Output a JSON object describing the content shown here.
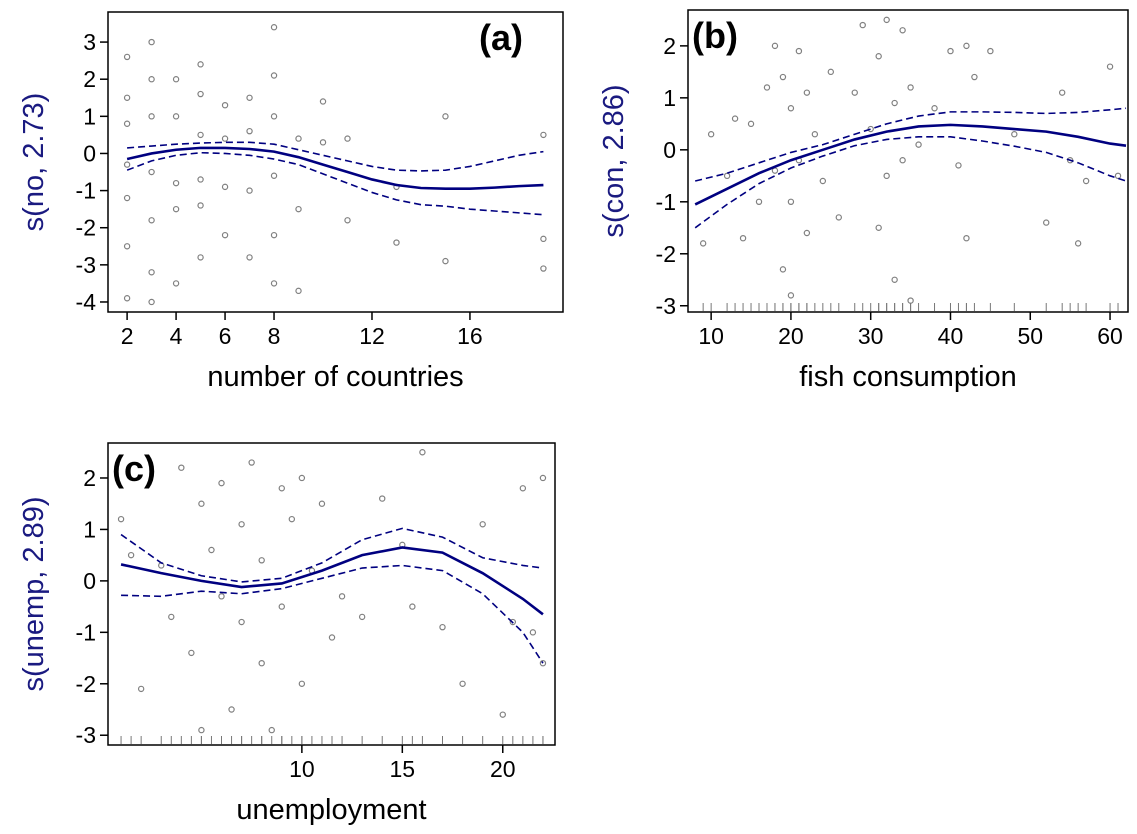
{
  "chart_data": [
    {
      "type": "scatter",
      "panel_label": "(a)",
      "xlabel": "number of countries",
      "ylabel": "s(no, 2.73)",
      "xlim": [
        1.22,
        19.8
      ],
      "ylim": [
        -4.27,
        3.81
      ],
      "xticks": [
        2,
        4,
        6,
        8,
        12,
        16
      ],
      "yticks": [
        3,
        2,
        1,
        0,
        -1,
        -2,
        -3,
        -4
      ],
      "rug": false,
      "points": {
        "color": "#808080",
        "x": [
          2,
          2,
          2,
          2,
          2,
          2,
          2,
          3,
          3,
          3,
          3,
          3,
          3,
          3,
          4,
          4,
          4,
          4,
          4,
          5,
          5,
          5,
          5,
          5,
          5,
          6,
          6,
          6,
          6,
          7,
          7,
          7,
          7,
          8,
          8,
          8,
          8,
          8,
          8,
          9,
          9,
          9,
          10,
          10,
          11,
          11,
          13,
          13,
          15,
          15,
          19,
          19,
          19
        ],
        "y": [
          2.6,
          1.5,
          0.8,
          -0.3,
          -1.2,
          -2.5,
          -3.9,
          3.0,
          2.0,
          1.0,
          -0.5,
          -1.8,
          -3.2,
          -4.0,
          2.0,
          1.0,
          -0.8,
          -1.5,
          -3.5,
          2.4,
          1.6,
          0.5,
          -0.7,
          -1.4,
          -2.8,
          1.3,
          0.4,
          -0.9,
          -2.2,
          1.5,
          0.6,
          -1.0,
          -2.8,
          3.4,
          2.1,
          1.0,
          -0.6,
          -2.2,
          -3.5,
          0.4,
          -1.5,
          -3.7,
          1.4,
          0.3,
          0.4,
          -1.8,
          -0.9,
          -2.4,
          1.0,
          -2.9,
          0.5,
          -2.3,
          -3.1
        ]
      },
      "fit": {
        "color": "#000080",
        "x": [
          2,
          3,
          4,
          5,
          6,
          7,
          8,
          9,
          10,
          11,
          12,
          13,
          14,
          15,
          16,
          17,
          18,
          19
        ],
        "y": [
          -0.15,
          0.0,
          0.1,
          0.15,
          0.15,
          0.12,
          0.05,
          -0.1,
          -0.3,
          -0.5,
          -0.7,
          -0.85,
          -0.93,
          -0.95,
          -0.95,
          -0.92,
          -0.88,
          -0.85
        ],
        "upper": [
          0.15,
          0.2,
          0.25,
          0.28,
          0.3,
          0.3,
          0.25,
          0.1,
          -0.05,
          -0.2,
          -0.35,
          -0.45,
          -0.47,
          -0.45,
          -0.35,
          -0.2,
          -0.05,
          0.05
        ],
        "lower": [
          -0.45,
          -0.2,
          -0.05,
          0.02,
          0.0,
          -0.05,
          -0.15,
          -0.3,
          -0.55,
          -0.8,
          -1.05,
          -1.25,
          -1.38,
          -1.42,
          -1.5,
          -1.55,
          -1.6,
          -1.65
        ]
      }
    },
    {
      "type": "scatter",
      "panel_label": "(b)",
      "xlabel": "fish consumption",
      "ylabel": "s(con, 2.86)",
      "xlim": [
        7.1,
        62.25
      ],
      "ylim": [
        -3.12,
        2.69
      ],
      "xticks": [
        10,
        20,
        30,
        40,
        50,
        60
      ],
      "yticks": [
        2,
        1,
        0,
        -1,
        -2,
        -3
      ],
      "rug": true,
      "points": {
        "color": "#808080",
        "x": [
          9,
          10,
          12,
          13,
          14,
          15,
          16,
          17,
          18,
          18,
          19,
          19,
          20,
          20,
          20,
          21,
          21,
          22,
          22,
          23,
          24,
          25,
          26,
          28,
          29,
          30,
          31,
          31,
          32,
          32,
          33,
          33,
          34,
          34,
          35,
          35,
          36,
          38,
          40,
          41,
          42,
          42,
          43,
          45,
          48,
          52,
          54,
          55,
          56,
          57,
          60,
          61
        ],
        "y": [
          -1.8,
          0.3,
          -0.5,
          0.6,
          -1.7,
          0.5,
          -1.0,
          1.2,
          2.0,
          -0.4,
          1.4,
          -2.3,
          0.8,
          -1.0,
          -2.8,
          1.9,
          -0.2,
          1.1,
          -1.6,
          0.3,
          -0.6,
          1.5,
          -1.3,
          1.1,
          2.4,
          0.4,
          -1.5,
          1.8,
          2.5,
          -0.5,
          0.9,
          -2.5,
          2.3,
          -0.2,
          1.2,
          -2.9,
          0.1,
          0.8,
          1.9,
          -0.3,
          2.0,
          -1.7,
          1.4,
          1.9,
          0.3,
          -1.4,
          1.1,
          -0.2,
          -1.8,
          -0.6,
          1.6,
          -0.5
        ]
      },
      "fit": {
        "color": "#000080",
        "x": [
          8,
          12,
          16,
          20,
          24,
          28,
          32,
          36,
          40,
          44,
          48,
          52,
          56,
          60,
          62
        ],
        "y": [
          -1.05,
          -0.75,
          -0.45,
          -0.2,
          0.0,
          0.2,
          0.35,
          0.45,
          0.48,
          0.45,
          0.4,
          0.35,
          0.25,
          0.12,
          0.08
        ],
        "upper": [
          -0.6,
          -0.45,
          -0.25,
          -0.05,
          0.1,
          0.3,
          0.5,
          0.65,
          0.73,
          0.73,
          0.72,
          0.7,
          0.72,
          0.77,
          0.8
        ],
        "lower": [
          -1.5,
          -1.05,
          -0.65,
          -0.35,
          -0.12,
          0.08,
          0.2,
          0.25,
          0.25,
          0.17,
          0.07,
          -0.05,
          -0.25,
          -0.5,
          -0.6
        ]
      }
    },
    {
      "type": "scatter",
      "panel_label": "(c)",
      "xlabel": "unemployment",
      "ylabel": "s(unemp, 2.89)",
      "xlim": [
        0.35,
        22.6
      ],
      "ylim": [
        -3.19,
        2.68
      ],
      "xticks": [
        10,
        15,
        20
      ],
      "yticks": [
        2,
        1,
        0,
        -1,
        -2,
        -3
      ],
      "rug": true,
      "points": {
        "color": "#808080",
        "x": [
          1,
          1.5,
          2,
          3,
          3.5,
          4,
          4.5,
          5,
          5,
          5.5,
          6,
          6,
          6.5,
          7,
          7,
          7.5,
          8,
          8,
          8.5,
          9,
          9,
          9.5,
          10,
          10,
          10.5,
          11,
          11.5,
          12,
          13,
          14,
          15,
          15.5,
          16,
          17,
          18,
          19,
          20,
          20.5,
          21,
          21.5,
          22,
          22
        ],
        "y": [
          1.2,
          0.5,
          -2.1,
          0.3,
          -0.7,
          2.2,
          -1.4,
          1.5,
          -2.9,
          0.6,
          -0.3,
          1.9,
          -2.5,
          1.1,
          -0.8,
          2.3,
          -1.6,
          0.4,
          -2.9,
          1.8,
          -0.5,
          1.2,
          -2.0,
          2.0,
          0.2,
          1.5,
          -1.1,
          -0.3,
          -0.7,
          1.6,
          0.7,
          -0.5,
          2.5,
          -0.9,
          -2.0,
          1.1,
          -2.6,
          -0.8,
          1.8,
          -1.0,
          2.0,
          -1.6
        ]
      },
      "fit": {
        "color": "#000080",
        "x": [
          1,
          3,
          5,
          7,
          9,
          11,
          13,
          15,
          17,
          19,
          21,
          22
        ],
        "y": [
          0.32,
          0.15,
          0.0,
          -0.12,
          -0.05,
          0.2,
          0.5,
          0.65,
          0.55,
          0.15,
          -0.35,
          -0.65
        ],
        "upper": [
          0.9,
          0.35,
          0.1,
          -0.02,
          0.05,
          0.35,
          0.8,
          1.02,
          0.85,
          0.45,
          0.3,
          0.25
        ],
        "lower": [
          -0.28,
          -0.3,
          -0.2,
          -0.25,
          -0.15,
          0.05,
          0.25,
          0.3,
          0.2,
          -0.25,
          -1.0,
          -1.6
        ]
      }
    }
  ]
}
